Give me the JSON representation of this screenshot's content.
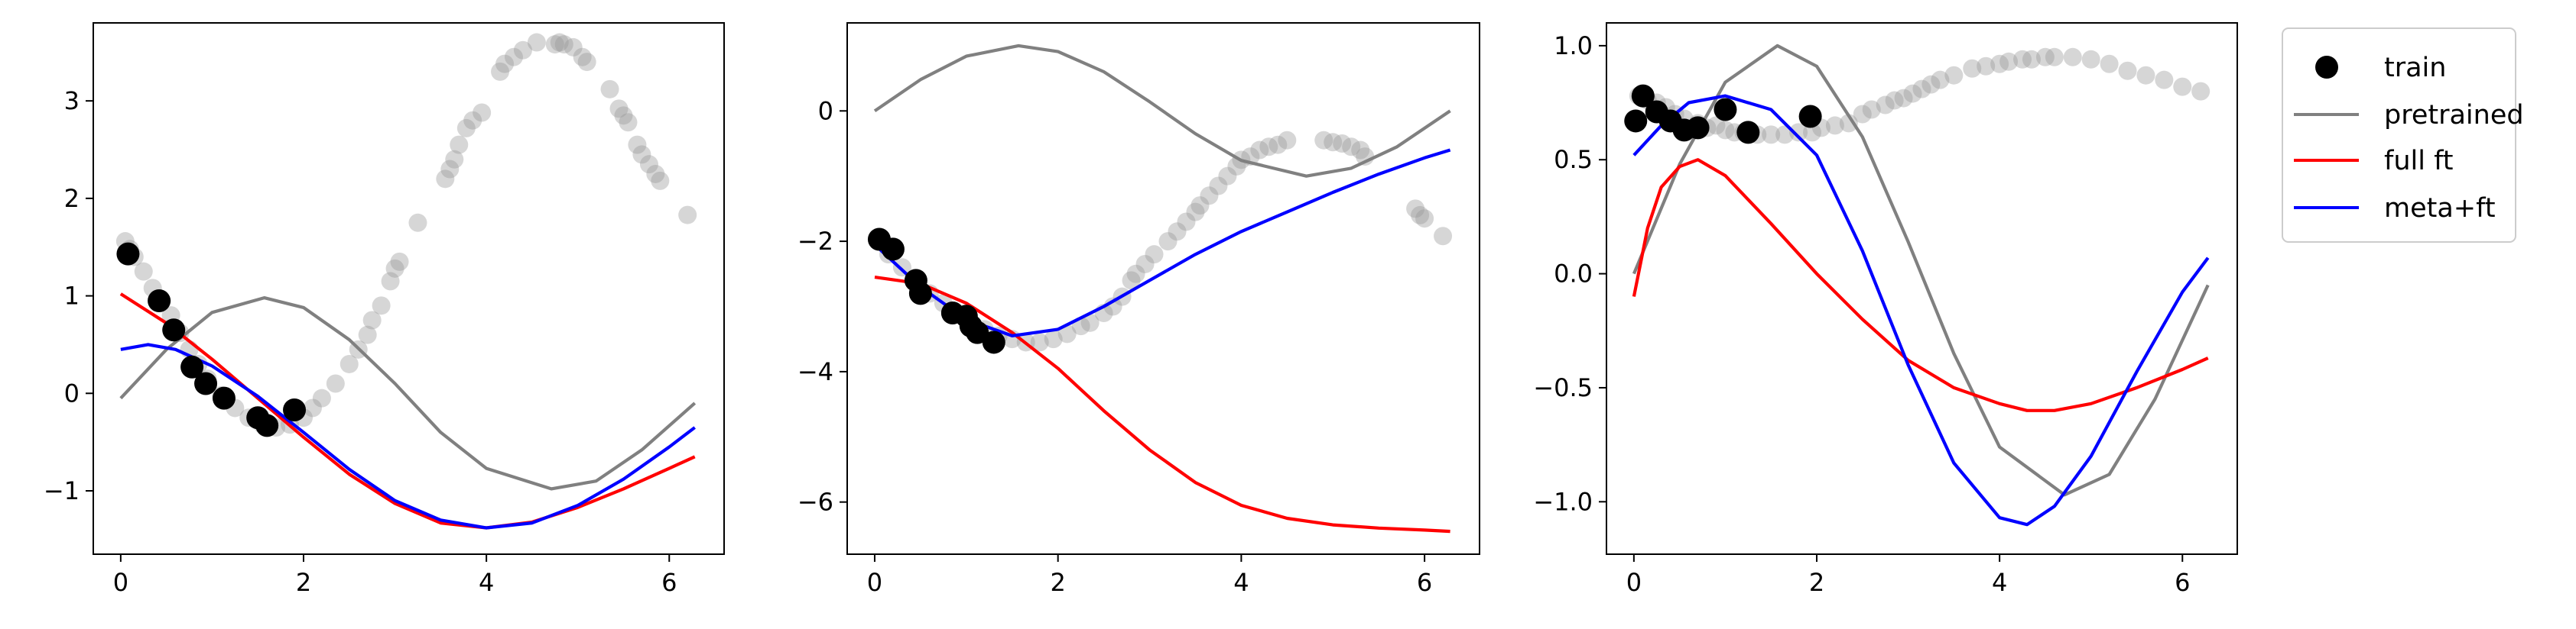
{
  "chart_data": [
    {
      "type": "line",
      "xlim": [
        -0.3,
        6.6
      ],
      "ylim": [
        -1.65,
        3.8
      ],
      "xticks": [
        "0",
        "2",
        "4",
        "6"
      ],
      "yticks": [
        "−1",
        "0",
        "1",
        "2",
        "3"
      ],
      "grid": false,
      "series": [
        {
          "name": "pretrained",
          "color": "#808080",
          "x": [
            0,
            0.5,
            1,
            1.57,
            2,
            2.5,
            3,
            3.5,
            4,
            4.71,
            5.2,
            5.7,
            6.28
          ],
          "y": [
            -0.05,
            0.45,
            0.83,
            0.98,
            0.88,
            0.55,
            0.1,
            -0.4,
            -0.77,
            -0.98,
            -0.9,
            -0.58,
            -0.1
          ]
        },
        {
          "name": "full ft",
          "color": "#ff0000",
          "x": [
            0,
            0.5,
            1,
            1.5,
            2,
            2.5,
            3,
            3.5,
            4,
            4.5,
            5,
            5.5,
            6,
            6.28
          ],
          "y": [
            1.02,
            0.72,
            0.35,
            -0.05,
            -0.45,
            -0.83,
            -1.13,
            -1.33,
            -1.38,
            -1.32,
            -1.17,
            -0.98,
            -0.77,
            -0.65
          ]
        },
        {
          "name": "meta+ft",
          "color": "#0000ff",
          "x": [
            0,
            0.3,
            0.6,
            1,
            1.5,
            2,
            2.5,
            3,
            3.5,
            4,
            4.5,
            5,
            5.5,
            6,
            6.28
          ],
          "y": [
            0.45,
            0.5,
            0.45,
            0.28,
            -0.03,
            -0.4,
            -0.78,
            -1.1,
            -1.3,
            -1.38,
            -1.33,
            -1.15,
            -0.88,
            -0.55,
            -0.35
          ]
        }
      ],
      "train": [
        [
          0.08,
          1.43
        ],
        [
          0.42,
          0.95
        ],
        [
          0.58,
          0.65
        ],
        [
          0.78,
          0.27
        ],
        [
          0.93,
          0.1
        ],
        [
          1.13,
          -0.05
        ],
        [
          1.5,
          -0.25
        ],
        [
          1.6,
          -0.33
        ],
        [
          1.9,
          -0.17
        ]
      ],
      "target": [
        [
          0.05,
          1.56
        ],
        [
          0.1,
          1.48
        ],
        [
          0.15,
          1.4
        ],
        [
          0.25,
          1.25
        ],
        [
          0.35,
          1.08
        ],
        [
          0.45,
          0.95
        ],
        [
          0.55,
          0.8
        ],
        [
          0.65,
          0.62
        ],
        [
          0.75,
          0.45
        ],
        [
          0.85,
          0.3
        ],
        [
          0.95,
          0.15
        ],
        [
          1.1,
          -0.02
        ],
        [
          1.25,
          -0.15
        ],
        [
          1.4,
          -0.25
        ],
        [
          1.55,
          -0.32
        ],
        [
          1.7,
          -0.35
        ],
        [
          1.85,
          -0.32
        ],
        [
          2.0,
          -0.25
        ],
        [
          2.1,
          -0.15
        ],
        [
          2.2,
          -0.05
        ],
        [
          2.35,
          0.1
        ],
        [
          2.5,
          0.3
        ],
        [
          2.6,
          0.45
        ],
        [
          2.7,
          0.6
        ],
        [
          2.75,
          0.75
        ],
        [
          2.85,
          0.9
        ],
        [
          2.95,
          1.15
        ],
        [
          3.0,
          1.28
        ],
        [
          3.05,
          1.35
        ],
        [
          3.25,
          1.75
        ],
        [
          3.55,
          2.2
        ],
        [
          3.6,
          2.3
        ],
        [
          3.65,
          2.4
        ],
        [
          3.7,
          2.55
        ],
        [
          3.78,
          2.72
        ],
        [
          3.85,
          2.8
        ],
        [
          3.95,
          2.88
        ],
        [
          4.15,
          3.3
        ],
        [
          4.2,
          3.38
        ],
        [
          4.3,
          3.45
        ],
        [
          4.4,
          3.52
        ],
        [
          4.55,
          3.6
        ],
        [
          4.75,
          3.58
        ],
        [
          4.8,
          3.6
        ],
        [
          4.85,
          3.58
        ],
        [
          4.95,
          3.55
        ],
        [
          5.05,
          3.45
        ],
        [
          5.1,
          3.4
        ],
        [
          5.35,
          3.12
        ],
        [
          5.45,
          2.92
        ],
        [
          5.5,
          2.85
        ],
        [
          5.55,
          2.78
        ],
        [
          5.65,
          2.55
        ],
        [
          5.7,
          2.45
        ],
        [
          5.78,
          2.35
        ],
        [
          5.85,
          2.25
        ],
        [
          5.9,
          2.18
        ],
        [
          6.2,
          1.83
        ]
      ]
    },
    {
      "type": "line",
      "xlim": [
        -0.3,
        6.6
      ],
      "ylim": [
        -6.8,
        1.35
      ],
      "xticks": [
        "0",
        "2",
        "4",
        "6"
      ],
      "yticks": [
        "−6",
        "−4",
        "−2",
        "0"
      ],
      "grid": false,
      "series": [
        {
          "name": "pretrained",
          "color": "#808080",
          "x": [
            0,
            0.5,
            1,
            1.57,
            2,
            2.5,
            3,
            3.5,
            4,
            4.71,
            5.2,
            5.7,
            6.28
          ],
          "y": [
            0,
            0.48,
            0.84,
            1.0,
            0.91,
            0.6,
            0.14,
            -0.35,
            -0.76,
            -1.0,
            -0.88,
            -0.55,
            0
          ]
        },
        {
          "name": "full ft",
          "color": "#ff0000",
          "x": [
            0,
            0.5,
            1,
            1.5,
            2,
            2.5,
            3,
            3.5,
            4,
            4.5,
            5,
            5.5,
            6,
            6.28
          ],
          "y": [
            -2.55,
            -2.65,
            -2.95,
            -3.4,
            -3.95,
            -4.6,
            -5.2,
            -5.7,
            -6.05,
            -6.25,
            -6.35,
            -6.4,
            -6.43,
            -6.45
          ]
        },
        {
          "name": "meta+ft",
          "color": "#0000ff",
          "x": [
            0,
            0.5,
            1,
            1.5,
            2,
            2.5,
            3,
            3.5,
            4,
            4.5,
            5,
            5.5,
            6,
            6.28
          ],
          "y": [
            -2.05,
            -2.7,
            -3.2,
            -3.45,
            -3.35,
            -3.0,
            -2.6,
            -2.2,
            -1.85,
            -1.55,
            -1.25,
            -0.97,
            -0.72,
            -0.6
          ]
        }
      ],
      "train": [
        [
          0.05,
          -1.97
        ],
        [
          0.2,
          -2.12
        ],
        [
          0.45,
          -2.6
        ],
        [
          0.5,
          -2.8
        ],
        [
          0.85,
          -3.1
        ],
        [
          1.0,
          -3.15
        ],
        [
          1.05,
          -3.3
        ],
        [
          1.12,
          -3.4
        ],
        [
          1.3,
          -3.55
        ]
      ],
      "target": [
        [
          0.05,
          -2.0
        ],
        [
          0.15,
          -2.2
        ],
        [
          0.3,
          -2.4
        ],
        [
          0.45,
          -2.6
        ],
        [
          0.6,
          -2.8
        ],
        [
          0.75,
          -2.95
        ],
        [
          0.9,
          -3.1
        ],
        [
          1.05,
          -3.25
        ],
        [
          1.2,
          -3.35
        ],
        [
          1.35,
          -3.45
        ],
        [
          1.5,
          -3.5
        ],
        [
          1.65,
          -3.55
        ],
        [
          1.8,
          -3.55
        ],
        [
          1.95,
          -3.5
        ],
        [
          2.1,
          -3.42
        ],
        [
          2.25,
          -3.3
        ],
        [
          2.35,
          -3.25
        ],
        [
          2.5,
          -3.1
        ],
        [
          2.6,
          -3.0
        ],
        [
          2.7,
          -2.85
        ],
        [
          2.8,
          -2.6
        ],
        [
          2.85,
          -2.5
        ],
        [
          2.95,
          -2.35
        ],
        [
          3.05,
          -2.2
        ],
        [
          3.2,
          -2.0
        ],
        [
          3.3,
          -1.85
        ],
        [
          3.4,
          -1.7
        ],
        [
          3.5,
          -1.55
        ],
        [
          3.55,
          -1.45
        ],
        [
          3.65,
          -1.3
        ],
        [
          3.75,
          -1.15
        ],
        [
          3.85,
          -1.0
        ],
        [
          3.95,
          -0.85
        ],
        [
          4.0,
          -0.75
        ],
        [
          4.1,
          -0.7
        ],
        [
          4.2,
          -0.6
        ],
        [
          4.3,
          -0.55
        ],
        [
          4.4,
          -0.52
        ],
        [
          4.5,
          -0.45
        ],
        [
          4.9,
          -0.45
        ],
        [
          5.0,
          -0.48
        ],
        [
          5.1,
          -0.5
        ],
        [
          5.2,
          -0.55
        ],
        [
          5.3,
          -0.6
        ],
        [
          5.35,
          -0.7
        ],
        [
          5.9,
          -1.5
        ],
        [
          5.95,
          -1.6
        ],
        [
          6.0,
          -1.65
        ],
        [
          6.2,
          -1.92
        ]
      ]
    },
    {
      "type": "line",
      "xlim": [
        -0.3,
        6.6
      ],
      "ylim": [
        -1.23,
        1.1
      ],
      "xticks": [
        "0",
        "2",
        "4",
        "6"
      ],
      "yticks": [
        "−1.0",
        "−0.5",
        "0.0",
        "0.5",
        "1.0"
      ],
      "grid": false,
      "series": [
        {
          "name": "pretrained",
          "color": "#808080",
          "x": [
            0,
            0.5,
            1,
            1.57,
            2,
            2.5,
            3,
            3.5,
            4,
            4.71,
            5.2,
            5.7,
            6.28
          ],
          "y": [
            0,
            0.48,
            0.84,
            1.0,
            0.91,
            0.6,
            0.14,
            -0.35,
            -0.76,
            -0.97,
            -0.88,
            -0.55,
            -0.05
          ]
        },
        {
          "name": "full ft",
          "color": "#ff0000",
          "x": [
            0,
            0.15,
            0.3,
            0.5,
            0.7,
            1,
            1.5,
            2,
            2.5,
            3,
            3.5,
            4,
            4.3,
            4.6,
            5,
            5.5,
            6,
            6.28
          ],
          "y": [
            -0.1,
            0.2,
            0.38,
            0.47,
            0.5,
            0.43,
            0.22,
            0.0,
            -0.2,
            -0.38,
            -0.5,
            -0.57,
            -0.6,
            -0.6,
            -0.57,
            -0.5,
            -0.42,
            -0.37
          ]
        },
        {
          "name": "meta+ft",
          "color": "#0000ff",
          "x": [
            0,
            0.3,
            0.6,
            1,
            1.5,
            2,
            2.5,
            3,
            3.5,
            4,
            4.3,
            4.6,
            5,
            5.5,
            6,
            6.28
          ],
          "y": [
            0.52,
            0.65,
            0.75,
            0.78,
            0.72,
            0.52,
            0.1,
            -0.4,
            -0.83,
            -1.07,
            -1.1,
            -1.02,
            -0.8,
            -0.43,
            -0.08,
            0.07
          ]
        }
      ],
      "train": [
        [
          0.02,
          0.67
        ],
        [
          0.1,
          0.78
        ],
        [
          0.25,
          0.71
        ],
        [
          0.4,
          0.67
        ],
        [
          0.55,
          0.63
        ],
        [
          0.7,
          0.64
        ],
        [
          1.0,
          0.72
        ],
        [
          1.25,
          0.62
        ],
        [
          1.93,
          0.69
        ]
      ],
      "target": [
        [
          0.05,
          0.78
        ],
        [
          0.15,
          0.76
        ],
        [
          0.25,
          0.75
        ],
        [
          0.35,
          0.73
        ],
        [
          0.45,
          0.7
        ],
        [
          0.55,
          0.68
        ],
        [
          0.7,
          0.66
        ],
        [
          0.8,
          0.64
        ],
        [
          0.9,
          0.65
        ],
        [
          1.0,
          0.63
        ],
        [
          1.1,
          0.62
        ],
        [
          1.2,
          0.62
        ],
        [
          1.35,
          0.61
        ],
        [
          1.5,
          0.61
        ],
        [
          1.65,
          0.61
        ],
        [
          1.8,
          0.62
        ],
        [
          1.95,
          0.62
        ],
        [
          2.05,
          0.64
        ],
        [
          2.2,
          0.65
        ],
        [
          2.35,
          0.66
        ],
        [
          2.5,
          0.7
        ],
        [
          2.6,
          0.72
        ],
        [
          2.75,
          0.74
        ],
        [
          2.85,
          0.76
        ],
        [
          2.95,
          0.77
        ],
        [
          3.05,
          0.79
        ],
        [
          3.15,
          0.81
        ],
        [
          3.25,
          0.83
        ],
        [
          3.35,
          0.85
        ],
        [
          3.5,
          0.87
        ],
        [
          3.7,
          0.9
        ],
        [
          3.85,
          0.91
        ],
        [
          4.0,
          0.92
        ],
        [
          4.1,
          0.93
        ],
        [
          4.25,
          0.94
        ],
        [
          4.35,
          0.94
        ],
        [
          4.5,
          0.95
        ],
        [
          4.6,
          0.95
        ],
        [
          4.8,
          0.95
        ],
        [
          5.0,
          0.94
        ],
        [
          5.2,
          0.92
        ],
        [
          5.4,
          0.89
        ],
        [
          5.6,
          0.87
        ],
        [
          5.8,
          0.85
        ],
        [
          6.0,
          0.82
        ],
        [
          6.2,
          0.8
        ]
      ]
    }
  ],
  "legend": {
    "placement": "outside-right-top",
    "entries": [
      {
        "label": "train",
        "kind": "marker",
        "color": "#000000"
      },
      {
        "label": "pretrained",
        "kind": "line",
        "color": "#808080"
      },
      {
        "label": "full ft",
        "kind": "line",
        "color": "#ff0000"
      },
      {
        "label": "meta+ft",
        "kind": "line",
        "color": "#0000ff"
      }
    ]
  },
  "colors": {
    "train": "#000000",
    "target": "#999999",
    "pretrained": "#808080",
    "full_ft": "#ff0000",
    "meta_ft": "#0000ff"
  }
}
